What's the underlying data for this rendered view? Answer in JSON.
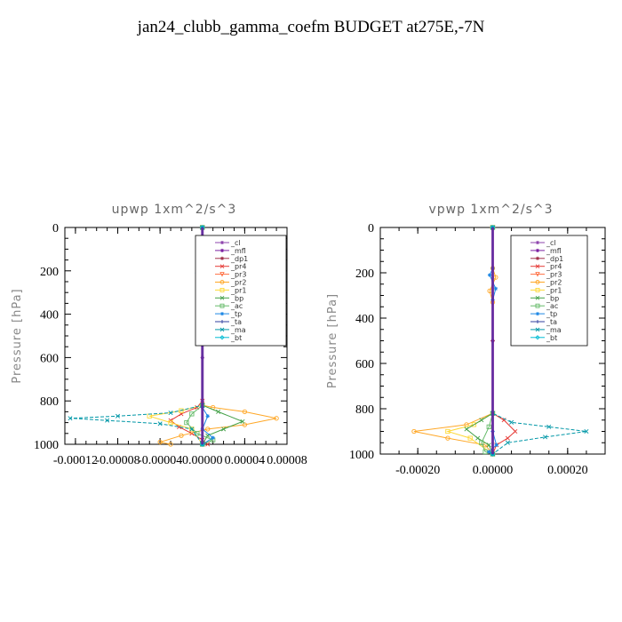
{
  "title": "jan24_clubb_gamma_coefm  BUDGET at275E,-7N",
  "chart_data": [
    {
      "type": "line",
      "title": "upwp   1xm^2/s^3",
      "ylabel": "Pressure [hPa]",
      "xlabel": "",
      "xlim": [
        -0.00013,
        8e-05
      ],
      "ylim": [
        1000,
        0
      ],
      "xticks": [
        "-0.00012",
        "-0.00008",
        "-0.00004",
        "0.00000",
        "0.00004",
        "0.00008"
      ],
      "yticks": [
        "0",
        "200",
        "400",
        "600",
        "800",
        "1000"
      ],
      "xtick_values": [
        -0.00012,
        -8e-05,
        -4e-05,
        0,
        4e-05,
        8e-05
      ],
      "ytick_values": [
        0,
        200,
        400,
        600,
        800,
        1000
      ],
      "legend_position": "top-right",
      "series": [
        {
          "name": "_cl",
          "color": "#8e44ad",
          "marker": "*",
          "points": [
            [
              0,
              0
            ],
            [
              0,
              200
            ],
            [
              0,
              400
            ],
            [
              0,
              600
            ],
            [
              0,
              800
            ],
            [
              0,
              1000
            ]
          ]
        },
        {
          "name": "_mfl",
          "color": "#7b1fa2",
          "marker": "*",
          "points": [
            [
              0,
              0
            ],
            [
              0,
              500
            ],
            [
              0,
              1000
            ]
          ]
        },
        {
          "name": "_dp1",
          "color": "#a0304a",
          "marker": "*",
          "points": [
            [
              0,
              0
            ],
            [
              0,
              500
            ],
            [
              0,
              1000
            ]
          ]
        },
        {
          "name": "_pr4",
          "color": "#e53935",
          "marker": "x",
          "points": [
            [
              0,
              0
            ],
            [
              0,
              800
            ],
            [
              -5e-06,
              830
            ],
            [
              -2e-05,
              860
            ],
            [
              -3e-05,
              890
            ],
            [
              -2.2e-05,
              920
            ],
            [
              -1e-05,
              950
            ],
            [
              0,
              980
            ],
            [
              5e-06,
              1000
            ]
          ]
        },
        {
          "name": "_pr3",
          "color": "#ff7043",
          "marker": "v",
          "points": [
            [
              0,
              0
            ],
            [
              0,
              820
            ],
            [
              0,
              1000
            ]
          ]
        },
        {
          "name": "_pr2",
          "color": "#ffa726",
          "marker": "o",
          "points": [
            [
              0,
              0
            ],
            [
              0,
              180
            ],
            [
              4e-06,
              210
            ],
            [
              -4e-06,
              270
            ],
            [
              0,
              320
            ],
            [
              0,
              820
            ],
            [
              1e-05,
              830
            ],
            [
              4e-05,
              850
            ],
            [
              7e-05,
              880
            ],
            [
              4e-05,
              910
            ],
            [
              5e-06,
              930
            ],
            [
              -2e-05,
              960
            ],
            [
              -4e-05,
              990
            ],
            [
              -3e-05,
              1000
            ]
          ]
        },
        {
          "name": "_pr1",
          "color": "#fdd835",
          "marker": "s",
          "points": [
            [
              0,
              0
            ],
            [
              0,
              820
            ],
            [
              -2e-05,
              845
            ],
            [
              -5e-05,
              870
            ],
            [
              -3e-05,
              900
            ],
            [
              -1e-05,
              930
            ],
            [
              0,
              1000
            ]
          ]
        },
        {
          "name": "_bp",
          "color": "#43a047",
          "marker": "x",
          "points": [
            [
              0,
              0
            ],
            [
              0,
              820
            ],
            [
              1.5e-05,
              850
            ],
            [
              3.8e-05,
              895
            ],
            [
              2e-05,
              930
            ],
            [
              5e-06,
              960
            ],
            [
              0,
              1000
            ]
          ]
        },
        {
          "name": "_ac",
          "color": "#66bb6a",
          "marker": "s",
          "points": [
            [
              0,
              0
            ],
            [
              0,
              820
            ],
            [
              -1e-05,
              860
            ],
            [
              -1.5e-05,
              900
            ],
            [
              -5e-06,
              950
            ],
            [
              1e-05,
              980
            ],
            [
              0,
              1000
            ]
          ]
        },
        {
          "name": "_tp",
          "color": "#1e88e5",
          "marker": "*",
          "points": [
            [
              0,
              0
            ],
            [
              0,
              180
            ],
            [
              -5e-06,
              210
            ],
            [
              5e-06,
              260
            ],
            [
              0,
              320
            ],
            [
              0,
              830
            ],
            [
              5e-06,
              870
            ],
            [
              0,
              930
            ],
            [
              1e-05,
              970
            ],
            [
              0,
              1000
            ]
          ]
        },
        {
          "name": "_ta",
          "color": "#303f9f",
          "marker": "+",
          "points": [
            [
              0,
              0
            ],
            [
              0,
              1000
            ]
          ]
        },
        {
          "name": "_ma",
          "color": "#0097a7",
          "marker": "x",
          "points": [
            [
              0,
              0
            ],
            [
              0,
              820
            ],
            [
              -3e-05,
              855
            ],
            [
              -8e-05,
              870
            ],
            [
              -0.000125,
              880
            ],
            [
              -9e-05,
              890
            ],
            [
              -4e-05,
              905
            ],
            [
              -1e-05,
              930
            ],
            [
              0,
              1000
            ]
          ]
        },
        {
          "name": "_bt",
          "color": "#00bcd4",
          "marker": "d",
          "points": [
            [
              0,
              0
            ],
            [
              0,
              1000
            ]
          ]
        }
      ]
    },
    {
      "type": "line",
      "title": "vpwp   1xm^2/s^3",
      "ylabel": "Pressure [hPa]",
      "xlabel": "",
      "xlim": [
        -0.0003,
        0.0003
      ],
      "ylim": [
        1000,
        0
      ],
      "xticks": [
        "-0.00020",
        "0.00000",
        "0.00020"
      ],
      "yticks": [
        "0",
        "200",
        "400",
        "600",
        "800",
        "1000"
      ],
      "xtick_values": [
        -0.0002,
        0,
        0.0002
      ],
      "ytick_values": [
        0,
        200,
        400,
        600,
        800,
        1000
      ],
      "legend_position": "top-right",
      "series": [
        {
          "name": "_cl",
          "color": "#8e44ad",
          "marker": "*",
          "points": [
            [
              0,
              0
            ],
            [
              0,
              500
            ],
            [
              0,
              1000
            ]
          ]
        },
        {
          "name": "_mfl",
          "color": "#7b1fa2",
          "marker": "*",
          "points": [
            [
              0,
              0
            ],
            [
              0,
              500
            ],
            [
              0,
              1000
            ]
          ]
        },
        {
          "name": "_dp1",
          "color": "#a0304a",
          "marker": "*",
          "points": [
            [
              0,
              0
            ],
            [
              0,
              500
            ],
            [
              0,
              1000
            ]
          ]
        },
        {
          "name": "_pr4",
          "color": "#e53935",
          "marker": "x",
          "points": [
            [
              0,
              0
            ],
            [
              0,
              820
            ],
            [
              3e-05,
              850
            ],
            [
              6e-05,
              900
            ],
            [
              4e-05,
              930
            ],
            [
              1e-05,
              960
            ],
            [
              0,
              1000
            ]
          ]
        },
        {
          "name": "_pr3",
          "color": "#ff7043",
          "marker": "v",
          "points": [
            [
              0,
              0
            ],
            [
              0,
              820
            ],
            [
              0,
              1000
            ]
          ]
        },
        {
          "name": "_pr2",
          "color": "#ffa726",
          "marker": "o",
          "points": [
            [
              0,
              0
            ],
            [
              0,
              180
            ],
            [
              8e-06,
              220
            ],
            [
              -8e-06,
              280
            ],
            [
              0,
              330
            ],
            [
              0,
              820
            ],
            [
              -7e-05,
              870
            ],
            [
              -0.00021,
              900
            ],
            [
              -0.00012,
              930
            ],
            [
              -2e-05,
              960
            ],
            [
              0,
              1000
            ]
          ]
        },
        {
          "name": "_pr1",
          "color": "#fdd835",
          "marker": "s",
          "points": [
            [
              0,
              0
            ],
            [
              0,
              820
            ],
            [
              -5e-05,
              870
            ],
            [
              -0.00012,
              900
            ],
            [
              -6e-05,
              930
            ],
            [
              0,
              1000
            ]
          ]
        },
        {
          "name": "_bp",
          "color": "#43a047",
          "marker": "x",
          "points": [
            [
              0,
              0
            ],
            [
              0,
              820
            ],
            [
              -3e-05,
              850
            ],
            [
              -7e-05,
              890
            ],
            [
              -4e-05,
              930
            ],
            [
              -1e-05,
              960
            ],
            [
              0,
              1000
            ]
          ]
        },
        {
          "name": "_ac",
          "color": "#66bb6a",
          "marker": "s",
          "points": [
            [
              0,
              0
            ],
            [
              0,
              820
            ],
            [
              -1e-05,
              880
            ],
            [
              -3e-05,
              950
            ],
            [
              -2e-05,
              990
            ],
            [
              0,
              1000
            ]
          ]
        },
        {
          "name": "_tp",
          "color": "#1e88e5",
          "marker": "*",
          "points": [
            [
              0,
              0
            ],
            [
              0,
              180
            ],
            [
              -8e-06,
              210
            ],
            [
              8e-06,
              270
            ],
            [
              0,
              320
            ],
            [
              0,
              900
            ],
            [
              1e-05,
              960
            ],
            [
              -1e-05,
              990
            ],
            [
              0,
              1000
            ]
          ]
        },
        {
          "name": "_ta",
          "color": "#303f9f",
          "marker": "+",
          "points": [
            [
              0,
              0
            ],
            [
              0,
              1000
            ]
          ]
        },
        {
          "name": "_ma",
          "color": "#0097a7",
          "marker": "x",
          "points": [
            [
              0,
              0
            ],
            [
              0,
              820
            ],
            [
              5e-05,
              860
            ],
            [
              0.00015,
              880
            ],
            [
              0.00025,
              900
            ],
            [
              0.00014,
              925
            ],
            [
              4e-05,
              950
            ],
            [
              0,
              1000
            ]
          ]
        },
        {
          "name": "_bt",
          "color": "#00bcd4",
          "marker": "d",
          "points": [
            [
              0,
              0
            ],
            [
              0,
              1000
            ]
          ]
        }
      ]
    }
  ]
}
